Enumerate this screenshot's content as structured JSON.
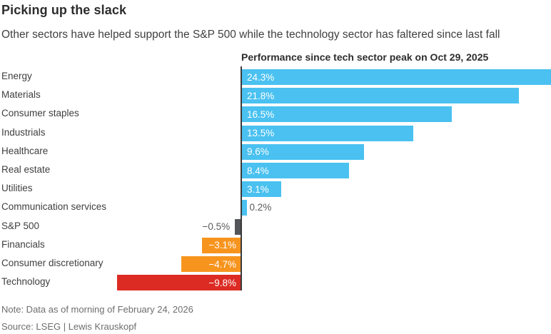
{
  "header": {
    "title": "Picking up the slack",
    "subtitle": "Other sectors have helped support the S&P 500 while the technology sector has faltered since last fall"
  },
  "chart_data": {
    "type": "bar",
    "orientation": "horizontal",
    "title": "Performance since tech sector peak on Oct 29, 2025",
    "categories": [
      "Energy",
      "Materials",
      "Consumer staples",
      "Industrials",
      "Healthcare",
      "Real estate",
      "Utilities",
      "Communication services",
      "S&P 500",
      "Financials",
      "Consumer discretionary",
      "Technology"
    ],
    "values": [
      24.3,
      21.8,
      16.5,
      13.5,
      9.6,
      8.4,
      3.1,
      0.2,
      -0.5,
      -3.1,
      -4.7,
      -9.8
    ],
    "value_labels": [
      "24.3%",
      "21.8%",
      "16.5%",
      "13.5%",
      "9.6%",
      "8.4%",
      "3.1%",
      "0.2%",
      "−0.5%",
      "−3.1%",
      "−4.7%",
      "−9.8%"
    ],
    "bar_colors": [
      "blue",
      "blue",
      "blue",
      "blue",
      "blue",
      "blue",
      "blue",
      "blue",
      "gray",
      "orange",
      "orange",
      "red"
    ],
    "label_positions": [
      "inside",
      "inside",
      "inside",
      "inside",
      "inside",
      "inside",
      "inside",
      "outside",
      "outside",
      "inside",
      "inside",
      "inside"
    ],
    "palette": {
      "blue": "#4ac1f0",
      "gray": "#55565a",
      "orange": "#f7941e",
      "red": "#dc2b23"
    },
    "axis": {
      "zero_line_color": "#3b3b3b",
      "xlim": [
        -10.5,
        24.4
      ],
      "gridlines": false,
      "value_suffix": "%"
    },
    "legend": "none"
  },
  "footer": {
    "note": "Note: Data as of morning of February 24, 2026",
    "source": "Source: LSEG | Lewis Krauskopf"
  }
}
